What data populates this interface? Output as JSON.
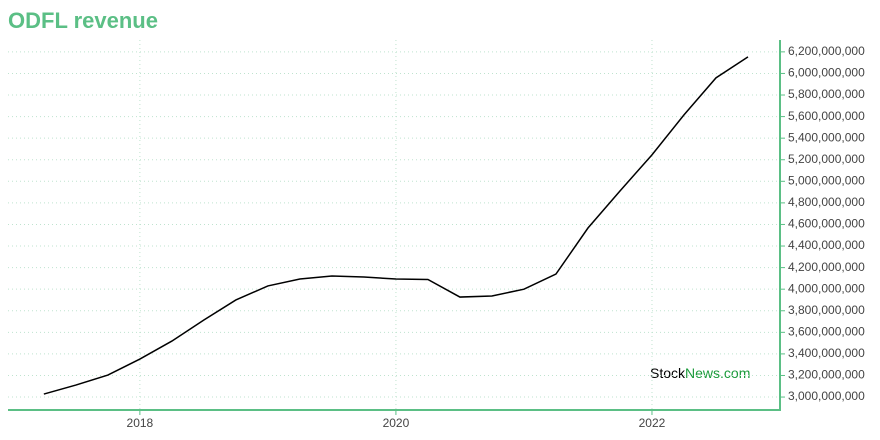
{
  "chart_data": {
    "type": "line",
    "title": "ODFL revenue",
    "watermark": [
      "Stock",
      "News.com"
    ],
    "x": [
      2017.25,
      2017.5,
      2017.75,
      2018.0,
      2018.25,
      2018.5,
      2018.75,
      2019.0,
      2019.25,
      2019.5,
      2019.75,
      2020.0,
      2020.25,
      2020.5,
      2020.75,
      2021.0,
      2021.25,
      2021.5,
      2021.75,
      2022.0,
      2022.25,
      2022.5,
      2022.75
    ],
    "series": [
      {
        "name": "revenue",
        "color": "#000000",
        "values": [
          3028000000,
          3111000000,
          3204000000,
          3352000000,
          3519000000,
          3714000000,
          3900000000,
          4030000000,
          4094000000,
          4122000000,
          4113000000,
          4094000000,
          4090000000,
          3927000000,
          3937000000,
          4000000000,
          4140000000,
          4567000000,
          4910000000,
          5245000000,
          5616000000,
          5959000000,
          6154000000
        ]
      }
    ],
    "xlim": [
      2016.97,
      2023.0
    ],
    "xticks": [
      2018,
      2020,
      2022
    ],
    "ylim": [
      2880000000,
      6310000000
    ],
    "yticks": [
      {
        "value": 3000000000,
        "label": "3,000,000,000"
      },
      {
        "value": 3200000000,
        "label": "3,200,000,000"
      },
      {
        "value": 3400000000,
        "label": "3,400,000,000"
      },
      {
        "value": 3600000000,
        "label": "3,600,000,000"
      },
      {
        "value": 3800000000,
        "label": "3,800,000,000"
      },
      {
        "value": 4000000000,
        "label": "4,000,000,000"
      },
      {
        "value": 4200000000,
        "label": "4,200,000,000"
      },
      {
        "value": 4400000000,
        "label": "4,400,000,000"
      },
      {
        "value": 4600000000,
        "label": "4,600,000,000"
      },
      {
        "value": 4800000000,
        "label": "4,800,000,000"
      },
      {
        "value": 5000000000,
        "label": "5,000,000,000"
      },
      {
        "value": 5200000000,
        "label": "5,200,000,000"
      },
      {
        "value": 5400000000,
        "label": "5,400,000,000"
      },
      {
        "value": 5600000000,
        "label": "5,600,000,000"
      },
      {
        "value": 5800000000,
        "label": "5,800,000,000"
      },
      {
        "value": 6000000000,
        "label": "6,000,000,000"
      },
      {
        "value": 6200000000,
        "label": "6,200,000,000"
      }
    ],
    "grid": true,
    "axis_color": "#5bbf85"
  }
}
